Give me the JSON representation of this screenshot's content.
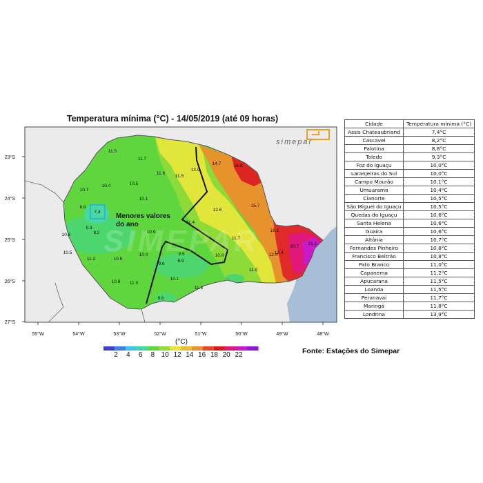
{
  "title": "Temperatura mínima (°C) - 14/05/2019 (até 09 horas)",
  "logo_text": "simepar",
  "watermark": "SIMEPAR",
  "annotation": {
    "line1": "Menores valores",
    "line2": "do ano"
  },
  "axes": {
    "lat_labels": [
      "23°S",
      "24°S",
      "25°S",
      "26°S",
      "27°S"
    ],
    "lon_labels": [
      "55°W",
      "54°W",
      "53°W",
      "52°W",
      "51°W",
      "50°W",
      "49°W",
      "48°W"
    ]
  },
  "colorbar": {
    "unit": "(°C)",
    "tick_labels": [
      "2",
      "4",
      "6",
      "8",
      "10",
      "12",
      "14",
      "16",
      "18",
      "20",
      "22"
    ],
    "colors": [
      "#3f3fd0",
      "#3f7fe6",
      "#40c4e6",
      "#40d8a8",
      "#5cd843",
      "#8fdc3a",
      "#e6e63a",
      "#e6c032",
      "#e6922c",
      "#e04826",
      "#d81a1a",
      "#e0187a",
      "#c81ac8",
      "#8a1ad8"
    ]
  },
  "map_values": [
    "11.5",
    "11.7",
    "13.9",
    "14.7",
    "16.8",
    "11.6",
    "11.5",
    "10.7",
    "10.4",
    "10.5",
    "10.1",
    "8.8",
    "7.4",
    "12.6",
    "15.7",
    "11.4",
    "9.3",
    "8.2",
    "10.9",
    "11.7",
    "18.1",
    "20.7",
    "21.1",
    "10.6",
    "10.5",
    "11.2",
    "10.6",
    "10.0",
    "9.5",
    "8.9",
    "9.6",
    "10.8",
    "11.9",
    "12.4",
    "12.4",
    "10.8",
    "11.0",
    "10.1",
    "11.3",
    "9.6"
  ],
  "table": {
    "headers": [
      "Cidade",
      "Temperatura mínima (°C)"
    ],
    "rows": [
      [
        "Assis Chateaubriand",
        "7,4°C"
      ],
      [
        "Cascavel",
        "8,2°C"
      ],
      [
        "Palotina",
        "8,8°C"
      ],
      [
        "Toledo",
        "9,3°C"
      ],
      [
        "Foz do Iguaçu",
        "10,0°C"
      ],
      [
        "Laranjeiras do Sul",
        "10,0°C"
      ],
      [
        "Campo Mourão",
        "10,1°C"
      ],
      [
        "Umuarama",
        "10,4°C"
      ],
      [
        "Cianorte",
        "10,5°C"
      ],
      [
        "São Miguel do Iguaçu",
        "10,5°C"
      ],
      [
        "Quedas do Iguaçu",
        "10,6°C"
      ],
      [
        "Santa Helena",
        "10,6°C"
      ],
      [
        "Guaíra",
        "10,6°C"
      ],
      [
        "Altônia",
        "10,7°C"
      ],
      [
        "Fernandes Pinheiro",
        "10,8°C"
      ],
      [
        "Francisco Beltrão",
        "10,8°C"
      ],
      [
        "Pato Branco",
        "11,0°C"
      ],
      [
        "Capanema",
        "11,2°C"
      ],
      [
        "Apucarana",
        "11,5°C"
      ],
      [
        "Loanda",
        "11,5°C"
      ],
      [
        "Peranavaí",
        "11,7°C"
      ],
      [
        "Maringá",
        "11,8°C"
      ],
      [
        "Londrina",
        "13,9°C"
      ]
    ]
  },
  "source": "Fonte: Estações do Simepar"
}
